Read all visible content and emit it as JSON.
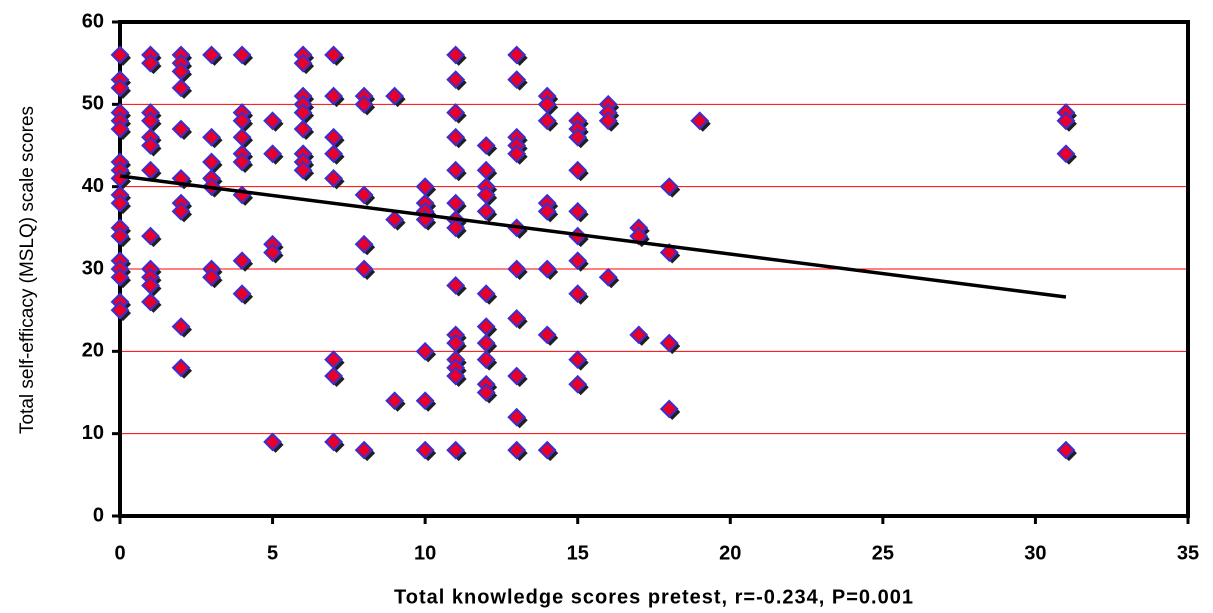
{
  "chart_data": {
    "type": "scatter",
    "x_label": "Total knowledge scores pretest, r=-0.234, P=0.001",
    "y_label": "Total self-efficacy (MSLQ) scale scores",
    "xlim": [
      0,
      35
    ],
    "xticks": [
      0,
      5,
      10,
      15,
      20,
      25,
      30,
      35
    ],
    "ylim": [
      0,
      60
    ],
    "yticks": [
      0,
      10,
      20,
      30,
      40,
      50,
      60
    ],
    "grid": true,
    "grid_color": "#ff0000",
    "marker_color": "#e8002a",
    "marker_edge_color": "#3a2fd0",
    "trendline": {
      "x": [
        0,
        31
      ],
      "y": [
        41.3,
        26.6
      ],
      "color": "#000000"
    },
    "points": [
      [
        0,
        56
      ],
      [
        0,
        53
      ],
      [
        0,
        52
      ],
      [
        0,
        49
      ],
      [
        0,
        48
      ],
      [
        0,
        47
      ],
      [
        0,
        43
      ],
      [
        0,
        42
      ],
      [
        0,
        41
      ],
      [
        0,
        39
      ],
      [
        0,
        38
      ],
      [
        0,
        35
      ],
      [
        0,
        34
      ],
      [
        0,
        31
      ],
      [
        0,
        30
      ],
      [
        0,
        29
      ],
      [
        0,
        26
      ],
      [
        0,
        25
      ],
      [
        1,
        56
      ],
      [
        1,
        55
      ],
      [
        1,
        49
      ],
      [
        1,
        48
      ],
      [
        1,
        46
      ],
      [
        1,
        45
      ],
      [
        1,
        42
      ],
      [
        1,
        34
      ],
      [
        1,
        30
      ],
      [
        1,
        29
      ],
      [
        1,
        28
      ],
      [
        1,
        26
      ],
      [
        2,
        56
      ],
      [
        2,
        55
      ],
      [
        2,
        54
      ],
      [
        2,
        52
      ],
      [
        2,
        47
      ],
      [
        2,
        41
      ],
      [
        2,
        38
      ],
      [
        2,
        37
      ],
      [
        2,
        23
      ],
      [
        2,
        18
      ],
      [
        3,
        56
      ],
      [
        3,
        46
      ],
      [
        3,
        43
      ],
      [
        3,
        41
      ],
      [
        3,
        40
      ],
      [
        3,
        30
      ],
      [
        3,
        29
      ],
      [
        4,
        56
      ],
      [
        4,
        49
      ],
      [
        4,
        48
      ],
      [
        4,
        46
      ],
      [
        4,
        44
      ],
      [
        4,
        43
      ],
      [
        4,
        39
      ],
      [
        4,
        31
      ],
      [
        4,
        27
      ],
      [
        5,
        48
      ],
      [
        5,
        44
      ],
      [
        5,
        33
      ],
      [
        5,
        32
      ],
      [
        5,
        9
      ],
      [
        6,
        56
      ],
      [
        6,
        55
      ],
      [
        6,
        51
      ],
      [
        6,
        50
      ],
      [
        6,
        49
      ],
      [
        6,
        47
      ],
      [
        6,
        44
      ],
      [
        6,
        43
      ],
      [
        6,
        42
      ],
      [
        7,
        56
      ],
      [
        7,
        51
      ],
      [
        7,
        46
      ],
      [
        7,
        44
      ],
      [
        7,
        41
      ],
      [
        7,
        19
      ],
      [
        7,
        17
      ],
      [
        7,
        9
      ],
      [
        8,
        51
      ],
      [
        8,
        50
      ],
      [
        8,
        39
      ],
      [
        8,
        33
      ],
      [
        8,
        30
      ],
      [
        8,
        8
      ],
      [
        9,
        51
      ],
      [
        9,
        36
      ],
      [
        9,
        14
      ],
      [
        10,
        40
      ],
      [
        10,
        38
      ],
      [
        10,
        37
      ],
      [
        10,
        36
      ],
      [
        10,
        20
      ],
      [
        10,
        14
      ],
      [
        10,
        8
      ],
      [
        11,
        56
      ],
      [
        11,
        53
      ],
      [
        11,
        49
      ],
      [
        11,
        46
      ],
      [
        11,
        42
      ],
      [
        11,
        38
      ],
      [
        11,
        36
      ],
      [
        11,
        35
      ],
      [
        11,
        28
      ],
      [
        11,
        22
      ],
      [
        11,
        21
      ],
      [
        11,
        19
      ],
      [
        11,
        18
      ],
      [
        11,
        17
      ],
      [
        11,
        8
      ],
      [
        12,
        45
      ],
      [
        12,
        42
      ],
      [
        12,
        40
      ],
      [
        12,
        39
      ],
      [
        12,
        37
      ],
      [
        12,
        27
      ],
      [
        12,
        23
      ],
      [
        12,
        21
      ],
      [
        12,
        19
      ],
      [
        12,
        16
      ],
      [
        12,
        15
      ],
      [
        13,
        56
      ],
      [
        13,
        53
      ],
      [
        13,
        46
      ],
      [
        13,
        45
      ],
      [
        13,
        44
      ],
      [
        13,
        35
      ],
      [
        13,
        30
      ],
      [
        13,
        24
      ],
      [
        13,
        17
      ],
      [
        13,
        12
      ],
      [
        13,
        8
      ],
      [
        14,
        51
      ],
      [
        14,
        50
      ],
      [
        14,
        48
      ],
      [
        14,
        38
      ],
      [
        14,
        37
      ],
      [
        14,
        30
      ],
      [
        14,
        22
      ],
      [
        14,
        8
      ],
      [
        15,
        48
      ],
      [
        15,
        47
      ],
      [
        15,
        46
      ],
      [
        15,
        42
      ],
      [
        15,
        37
      ],
      [
        15,
        34
      ],
      [
        15,
        31
      ],
      [
        15,
        27
      ],
      [
        15,
        19
      ],
      [
        15,
        16
      ],
      [
        16,
        50
      ],
      [
        16,
        49
      ],
      [
        16,
        48
      ],
      [
        16,
        29
      ],
      [
        17,
        35
      ],
      [
        17,
        34
      ],
      [
        17,
        22
      ],
      [
        18,
        40
      ],
      [
        18,
        32
      ],
      [
        18,
        21
      ],
      [
        18,
        13
      ],
      [
        19,
        48
      ],
      [
        31,
        49
      ],
      [
        31,
        48
      ],
      [
        31,
        44
      ],
      [
        31,
        8
      ]
    ]
  }
}
